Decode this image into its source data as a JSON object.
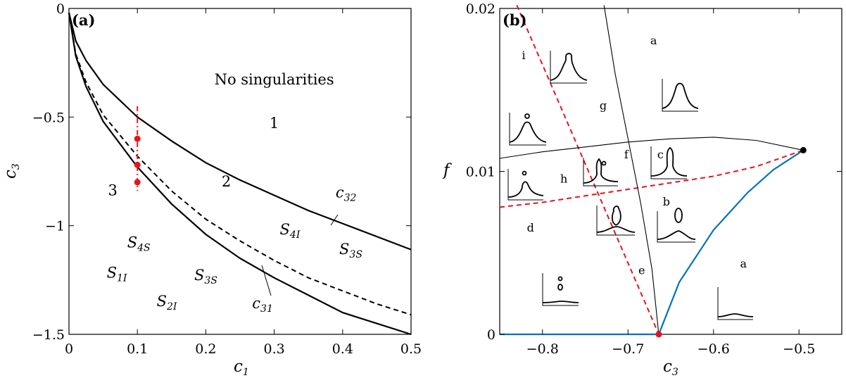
{
  "chart_data": [
    {
      "panel_label": "(a)",
      "type": "line",
      "xlabel": "c1",
      "ylabel": "c3",
      "xlim": [
        0,
        0.5
      ],
      "ylim": [
        -1.5,
        0
      ],
      "xticks": [
        "0",
        "0.1",
        "0.2",
        "0.3",
        "0.4",
        "0.5"
      ],
      "yticks": [
        "0",
        "−0.5",
        "−1",
        "−1.5"
      ],
      "grid": false,
      "series": [
        {
          "name": "c32",
          "style": "solid",
          "color": "#000000",
          "x": [
            0,
            0.01,
            0.025,
            0.05,
            0.1,
            0.15,
            0.2,
            0.25,
            0.3,
            0.35,
            0.4,
            0.45,
            0.5
          ],
          "y": [
            -0.02,
            -0.15,
            -0.24,
            -0.35,
            -0.5,
            -0.61,
            -0.71,
            -0.79,
            -0.86,
            -0.93,
            -0.99,
            -1.05,
            -1.11
          ]
        },
        {
          "name": "",
          "style": "dashed",
          "color": "#000000",
          "x": [
            0,
            0.01,
            0.025,
            0.05,
            0.1,
            0.15,
            0.2,
            0.25,
            0.3,
            0.35,
            0.4,
            0.45,
            0.5
          ],
          "y": [
            -0.02,
            -0.21,
            -0.34,
            -0.49,
            -0.68,
            -0.84,
            -0.97,
            -1.07,
            -1.16,
            -1.24,
            -1.3,
            -1.36,
            -1.41
          ]
        },
        {
          "name": "c31",
          "style": "solid",
          "color": "#000000",
          "x": [
            0,
            0.01,
            0.025,
            0.05,
            0.1,
            0.15,
            0.2,
            0.25,
            0.3,
            0.35,
            0.4,
            0.45,
            0.5
          ],
          "y": [
            -0.02,
            -0.22,
            -0.36,
            -0.52,
            -0.73,
            -0.9,
            -1.04,
            -1.15,
            -1.24,
            -1.32,
            -1.4,
            -1.45,
            -1.5
          ]
        }
      ],
      "vertical_segment": {
        "x": 0.1,
        "y": [
          -0.45,
          -0.84
        ],
        "color": "#e3161c",
        "style": "dashdot"
      },
      "points": [
        {
          "x": 0.1,
          "y": -0.6,
          "color": "#e3161c"
        },
        {
          "x": 0.1,
          "y": -0.72,
          "color": "#e3161c"
        },
        {
          "x": 0.1,
          "y": -0.8,
          "color": "#e3161c"
        }
      ],
      "annotations": [
        {
          "text": "No singularities",
          "x": 0.3,
          "y": -0.35
        },
        {
          "text": "1",
          "x": 0.3,
          "y": -0.55
        },
        {
          "text": "2",
          "x": 0.23,
          "y": -0.82
        },
        {
          "text": "3",
          "x": 0.064,
          "y": -0.86
        },
        {
          "text": "c32",
          "x": 0.405,
          "y": -0.87
        },
        {
          "text": "c31",
          "x": 0.283,
          "y": -1.38
        },
        {
          "text": "S4I",
          "x": 0.323,
          "y": -1.04
        },
        {
          "text": "S3S",
          "x": 0.412,
          "y": -1.13
        },
        {
          "text": "S4S",
          "x": 0.102,
          "y": -1.1
        },
        {
          "text": "S1I",
          "x": 0.07,
          "y": -1.24
        },
        {
          "text": "S3S",
          "x": 0.2,
          "y": -1.25
        },
        {
          "text": "S2I",
          "x": 0.143,
          "y": -1.37
        }
      ]
    },
    {
      "panel_label": "(b)",
      "type": "line",
      "xlabel": "c3",
      "ylabel": "f",
      "xlim": [
        -0.85,
        -0.45
      ],
      "ylim": [
        0,
        0.02
      ],
      "xticks": [
        "−0.8",
        "−0.7",
        "−0.6",
        "−0.5"
      ],
      "yticks": [
        "0",
        "0.01",
        "0.02"
      ],
      "grid": false,
      "series": [
        {
          "name": "",
          "style": "solid",
          "color": "#0072bd",
          "x": [
            -0.85,
            -0.664,
            -0.64,
            -0.6,
            -0.56,
            -0.53,
            -0.495
          ],
          "y": [
            0,
            0,
            0.0032,
            0.0064,
            0.0087,
            0.0101,
            0.0113
          ]
        },
        {
          "name": "",
          "style": "dashed",
          "color": "#e3161c",
          "x": [
            -0.85,
            -0.8,
            -0.75,
            -0.7,
            -0.65,
            -0.6,
            -0.55,
            -0.495
          ],
          "y": [
            0.0078,
            0.0081,
            0.0085,
            0.0089,
            0.0093,
            0.0097,
            0.0103,
            0.0113
          ]
        },
        {
          "name": "",
          "style": "dashed",
          "color": "#e3161c",
          "x": [
            -0.83,
            -0.664
          ],
          "y": [
            0.0202,
            0
          ]
        },
        {
          "name": "",
          "style": "solid-thin",
          "color": "#000000",
          "x": [
            -0.85,
            -0.8,
            -0.75,
            -0.7,
            -0.65,
            -0.6,
            -0.55,
            -0.495
          ],
          "y": [
            0.0108,
            0.0112,
            0.0115,
            0.0118,
            0.012,
            0.0121,
            0.0119,
            0.0113
          ]
        },
        {
          "name": "",
          "style": "solid-thin",
          "color": "#000000",
          "x": [
            -0.728,
            -0.715,
            -0.7,
            -0.685,
            -0.672,
            -0.664
          ],
          "y": [
            0.0202,
            0.016,
            0.012,
            0.008,
            0.004,
            0
          ]
        }
      ],
      "points": [
        {
          "x": -0.664,
          "y": 0,
          "color": "#e3161c"
        },
        {
          "x": -0.495,
          "y": 0.0113,
          "color": "#000000"
        }
      ],
      "annotations": [
        {
          "text": "a",
          "x": -0.67,
          "y": 0.0178
        },
        {
          "text": "a",
          "x": -0.565,
          "y": 0.0041
        },
        {
          "text": "i",
          "x": -0.822,
          "y": 0.0169
        },
        {
          "text": "g",
          "x": -0.729,
          "y": 0.0138
        },
        {
          "text": "f",
          "x": -0.702,
          "y": 0.0108
        },
        {
          "text": "c",
          "x": -0.662,
          "y": 0.0108
        },
        {
          "text": "h",
          "x": -0.775,
          "y": 0.0093
        },
        {
          "text": "b",
          "x": -0.655,
          "y": 0.0079
        },
        {
          "text": "d",
          "x": -0.814,
          "y": 0.0063
        },
        {
          "text": "e",
          "x": -0.684,
          "y": 0.0037
        }
      ]
    }
  ]
}
